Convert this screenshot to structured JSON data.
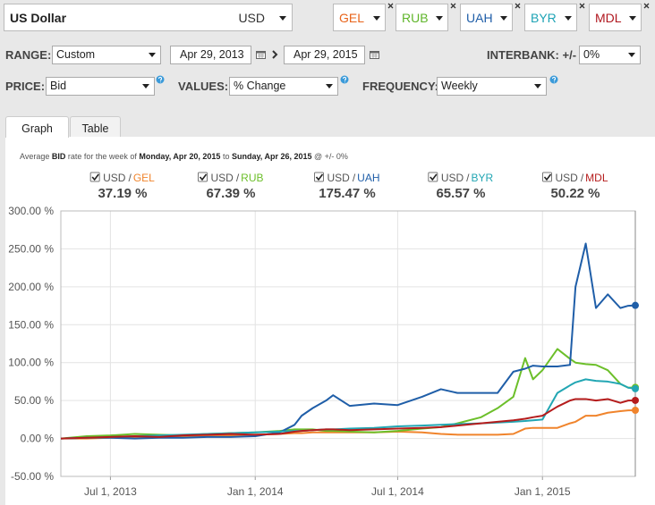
{
  "header": {
    "base": {
      "name": "US Dollar",
      "code": "USD"
    },
    "compare": [
      {
        "code": "GEL",
        "color": "#e8641b"
      },
      {
        "code": "RUB",
        "color": "#5fb52a"
      },
      {
        "code": "UAH",
        "color": "#1f5ea8"
      },
      {
        "code": "BYR",
        "color": "#1ea3b5"
      },
      {
        "code": "MDL",
        "color": "#b0171f"
      }
    ]
  },
  "controls": {
    "range": {
      "label": "RANGE:",
      "value": "Custom"
    },
    "from": "Apr 29, 2013",
    "to": "Apr 29, 2015",
    "interbank": {
      "label": "INTERBANK: +/-",
      "value": "0%"
    },
    "price": {
      "label": "PRICE:",
      "value": "Bid"
    },
    "values": {
      "label": "VALUES:",
      "value": "% Change"
    },
    "frequency": {
      "label": "FREQUENCY:",
      "value": "Weekly"
    }
  },
  "tabs": [
    "Graph",
    "Table"
  ],
  "chart_data": {
    "type": "line",
    "caption": [
      {
        "text": "Average ",
        "bold": false
      },
      {
        "text": "BID",
        "bold": true
      },
      {
        "text": " rate for the week of ",
        "bold": false
      },
      {
        "text": "Monday, Apr 20, 2015",
        "bold": true
      },
      {
        "text": " to ",
        "bold": false
      },
      {
        "text": "Sunday, Apr 26, 2015",
        "bold": true
      },
      {
        "text": " @ +/- 0%",
        "bold": false
      }
    ],
    "base": "USD",
    "separator": "/",
    "x": [
      "2013-04-29",
      "2013-06-01",
      "2013-07-01",
      "2013-08-01",
      "2013-09-01",
      "2013-10-01",
      "2013-11-01",
      "2013-12-01",
      "2014-01-01",
      "2014-02-01",
      "2014-02-20",
      "2014-03-01",
      "2014-03-15",
      "2014-04-01",
      "2014-04-10",
      "2014-05-01",
      "2014-06-01",
      "2014-07-01",
      "2014-08-01",
      "2014-08-25",
      "2014-09-15",
      "2014-10-15",
      "2014-11-05",
      "2014-11-25",
      "2014-12-10",
      "2014-12-20",
      "2015-01-01",
      "2015-01-20",
      "2015-02-05",
      "2015-02-12",
      "2015-02-25",
      "2015-03-10",
      "2015-03-25",
      "2015-04-10",
      "2015-04-20",
      "2015-04-29"
    ],
    "series": [
      {
        "name": "GEL",
        "color": "#f0842c",
        "current": {
          "value": 37.19,
          "label": "37.19 %"
        },
        "values": [
          0,
          0,
          1,
          2,
          2,
          3,
          3,
          4,
          5,
          6,
          7,
          7,
          8,
          8,
          8,
          8,
          8,
          9,
          8,
          6,
          5,
          5,
          5,
          6,
          13,
          14,
          14,
          14,
          20,
          22,
          30,
          30,
          34,
          36,
          37,
          37.19
        ]
      },
      {
        "name": "RUB",
        "color": "#6cbf2a",
        "current": {
          "value": 67.39,
          "label": "67.39 %"
        },
        "values": [
          0,
          3,
          4,
          6,
          5,
          4,
          6,
          7,
          8,
          10,
          12,
          12,
          12,
          10,
          10,
          9,
          8,
          10,
          13,
          15,
          20,
          28,
          40,
          55,
          106,
          78,
          90,
          118,
          105,
          100,
          98,
          97,
          90,
          72,
          67,
          67.39
        ]
      },
      {
        "name": "UAH",
        "color": "#1f5ea8",
        "current": {
          "value": 175.47,
          "label": "175.47 %"
        },
        "values": [
          0,
          1,
          1,
          0,
          1,
          1,
          2,
          2,
          3,
          8,
          18,
          30,
          40,
          50,
          57,
          43,
          46,
          44,
          55,
          65,
          60,
          60,
          60,
          88,
          92,
          96,
          95,
          95,
          97,
          200,
          257,
          172,
          190,
          172,
          175,
          175.47
        ]
      },
      {
        "name": "BYR",
        "color": "#22a6b3",
        "current": {
          "value": 65.57,
          "label": "65.57 %"
        },
        "values": [
          0,
          1,
          2,
          3,
          4,
          5,
          6,
          7,
          8,
          9,
          10,
          10,
          11,
          12,
          12,
          13,
          14,
          16,
          17,
          18,
          19,
          20,
          21,
          22,
          23,
          24,
          25,
          60,
          70,
          74,
          78,
          76,
          75,
          72,
          67,
          65.57
        ]
      },
      {
        "name": "MDL",
        "color": "#b51c1c",
        "current": {
          "value": 50.22,
          "label": "50.22 %"
        },
        "values": [
          0,
          1,
          2,
          3,
          2,
          4,
          5,
          6,
          5,
          6,
          9,
          10,
          11,
          12,
          12,
          11,
          12,
          13,
          14,
          15,
          17,
          20,
          22,
          24,
          26,
          28,
          30,
          42,
          50,
          52,
          52,
          50,
          52,
          47,
          50,
          50.22
        ]
      }
    ],
    "xlim": [
      "2013-04-29",
      "2015-04-29"
    ],
    "xticks": [
      {
        "value": "2013-07-01",
        "label": "Jul 1, 2013"
      },
      {
        "value": "2014-01-01",
        "label": "Jan 1, 2014"
      },
      {
        "value": "2014-07-01",
        "label": "Jul 1, 2014"
      },
      {
        "value": "2015-01-01",
        "label": "Jan 1, 2015"
      }
    ],
    "ylim": [
      -50,
      300
    ],
    "yticks": [
      {
        "value": -50,
        "label": "-50.00 %"
      },
      {
        "value": 0,
        "label": "0.00 %"
      },
      {
        "value": 50,
        "label": "50.00 %"
      },
      {
        "value": 100,
        "label": "100.00 %"
      },
      {
        "value": 150,
        "label": "150.00 %"
      },
      {
        "value": 200,
        "label": "200.00 %"
      },
      {
        "value": 250,
        "label": "250.00 %"
      },
      {
        "value": 300,
        "label": "300.00 %"
      }
    ],
    "grid": true
  }
}
